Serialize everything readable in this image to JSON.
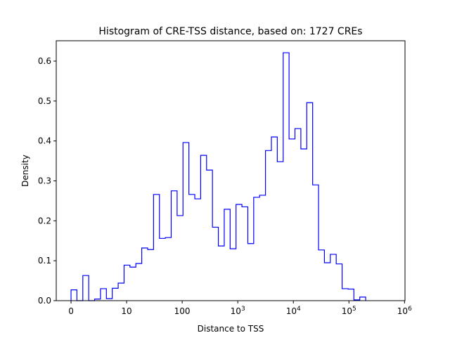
{
  "chart_data": {
    "type": "histogram",
    "title": "Histogram of CRE-TSS distance, based on: 1727 CREs",
    "xlabel": "Distance to TSS",
    "ylabel": "Density",
    "xscale": "symlog",
    "linthresh": 10,
    "xlim": [
      -2.66,
      1020000
    ],
    "ylim": [
      0,
      0.651
    ],
    "bin_range": [
      0,
      200000
    ],
    "values": [
      0.027,
      0.0,
      0.063,
      0.0,
      0.004,
      0.03,
      0.005,
      0.031,
      0.044,
      0.089,
      0.084,
      0.093,
      0.132,
      0.128,
      0.266,
      0.156,
      0.158,
      0.275,
      0.213,
      0.396,
      0.266,
      0.255,
      0.364,
      0.327,
      0.184,
      0.137,
      0.229,
      0.13,
      0.241,
      0.235,
      0.143,
      0.259,
      0.264,
      0.376,
      0.41,
      0.348,
      0.621,
      0.405,
      0.431,
      0.38,
      0.496,
      0.29,
      0.127,
      0.095,
      0.116,
      0.092,
      0.03,
      0.029,
      0.002,
      0.009
    ],
    "color": "#0000ff",
    "xticks": [
      {
        "value": 0,
        "base": "0",
        "exp": ""
      },
      {
        "value": 10,
        "base": "10",
        "exp": ""
      },
      {
        "value": 100,
        "base": "100",
        "exp": ""
      },
      {
        "value": 1000,
        "base": "10",
        "exp": "3"
      },
      {
        "value": 10000,
        "base": "10",
        "exp": "4"
      },
      {
        "value": 100000,
        "base": "10",
        "exp": "5"
      },
      {
        "value": 1000000,
        "base": "10",
        "exp": "6"
      }
    ],
    "yticks": [
      {
        "value": 0,
        "label": "0.0"
      },
      {
        "value": 0.1,
        "label": "0.1"
      },
      {
        "value": 0.2,
        "label": "0.2"
      },
      {
        "value": 0.3,
        "label": "0.3"
      },
      {
        "value": 0.4,
        "label": "0.4"
      },
      {
        "value": 0.5,
        "label": "0.5"
      },
      {
        "value": 0.6,
        "label": "0.6"
      }
    ],
    "grid": false
  }
}
